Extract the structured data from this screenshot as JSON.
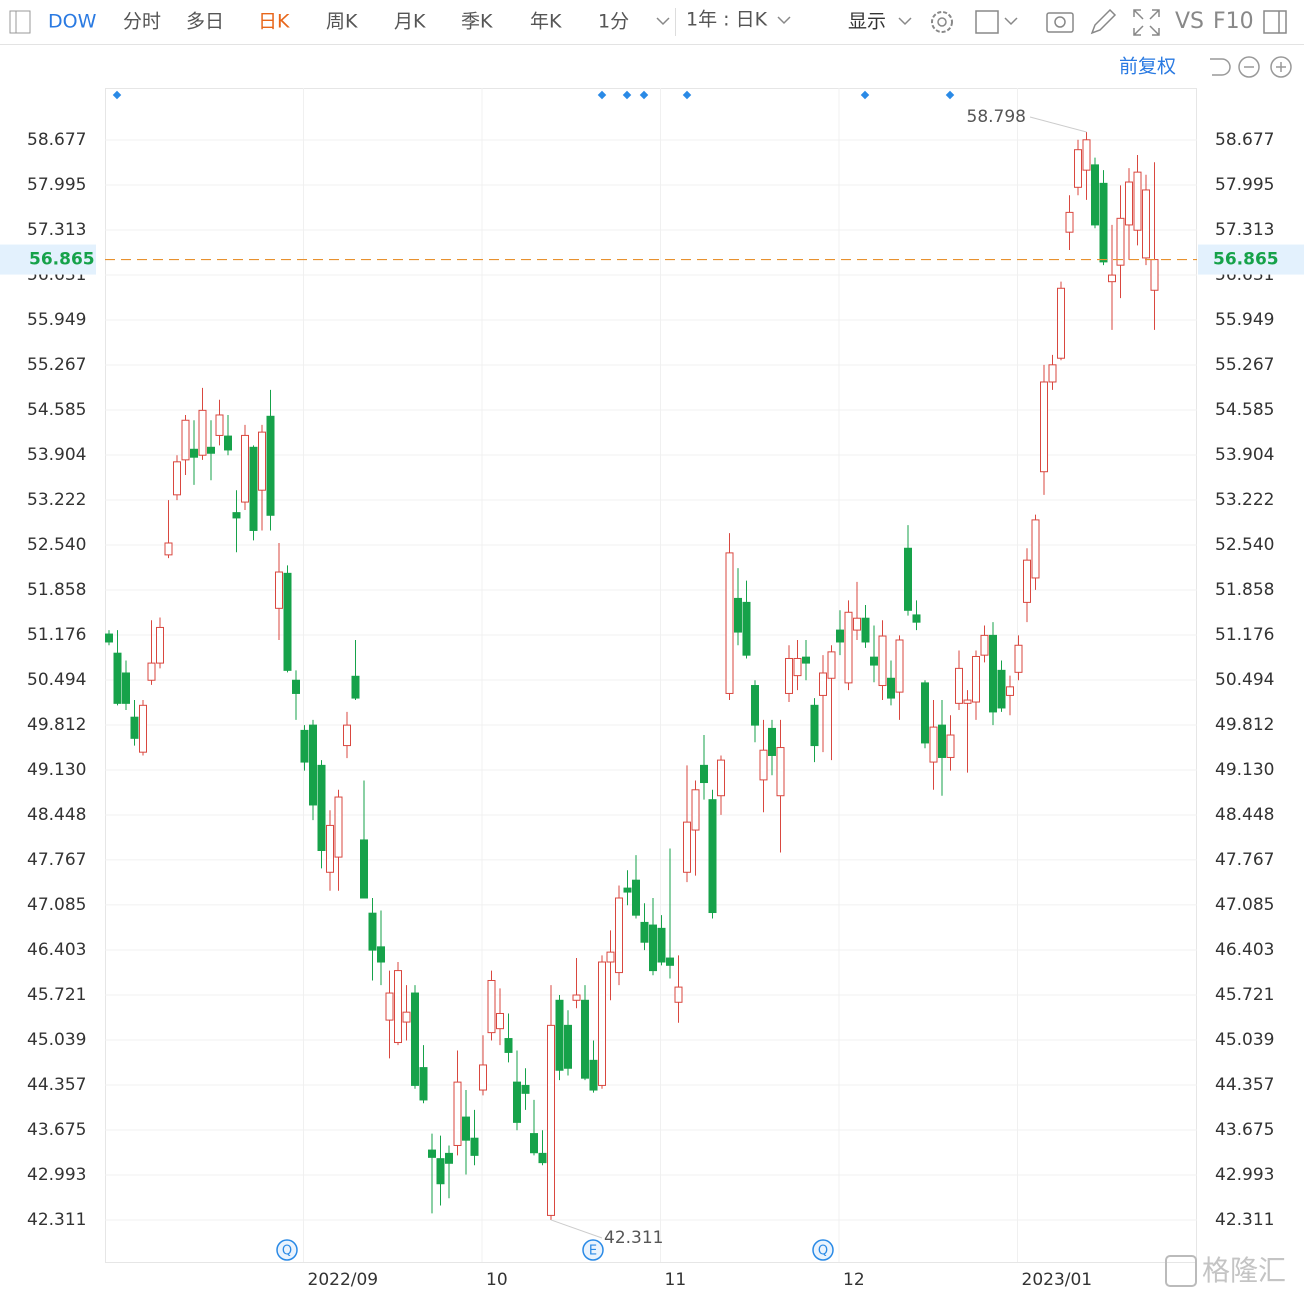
{
  "toolbar": {
    "symbol": "DOW",
    "tabs": [
      "分时",
      "多日",
      "日K",
      "周K",
      "月K",
      "季K",
      "年K",
      "1分"
    ],
    "period": "1年 : 日K",
    "display": "显示",
    "vs": "VS",
    "f10": "F10",
    "adjust": "前复权"
  },
  "watermark": "格隆汇",
  "event_badges": [
    "Q",
    "E",
    "Q"
  ],
  "chart_data": {
    "type": "candlestick",
    "up_color": "#d9473f",
    "down_color": "#16a24a",
    "grid": true,
    "last_price": 56.865,
    "last_price_color": "#e8912e",
    "ylim": [
      41.674,
      59.465
    ],
    "yticks": [
      58.677,
      57.995,
      57.313,
      56.631,
      55.949,
      55.267,
      54.585,
      53.904,
      53.222,
      {
        "value": 52.54,
        "label": "52.540"
      },
      51.858,
      51.176,
      50.494,
      49.812,
      {
        "value": 49.13,
        "label": "49.130"
      },
      48.448,
      47.767,
      47.085,
      46.403,
      45.721,
      45.039,
      44.357,
      43.675,
      42.993,
      42.311
    ],
    "categories": [
      null,
      null,
      null,
      null,
      null,
      null,
      null,
      null,
      null,
      null,
      null,
      null,
      null,
      null,
      null,
      null,
      null,
      null,
      null,
      null,
      null,
      null,
      null,
      "2022/09",
      null,
      null,
      null,
      null,
      null,
      null,
      null,
      null,
      null,
      null,
      null,
      null,
      null,
      null,
      null,
      null,
      null,
      null,
      null,
      null,
      "10",
      null,
      null,
      null,
      null,
      null,
      null,
      null,
      null,
      null,
      null,
      null,
      null,
      null,
      null,
      null,
      null,
      null,
      null,
      null,
      null,
      "11",
      null,
      null,
      null,
      null,
      null,
      null,
      null,
      null,
      null,
      null,
      null,
      null,
      null,
      null,
      null,
      null,
      null,
      null,
      null,
      null,
      "12",
      null,
      null,
      null,
      null,
      null,
      null,
      null,
      null,
      null,
      null,
      null,
      null,
      null,
      null,
      null,
      null,
      null,
      null,
      null,
      null,
      "2023/01",
      null,
      null,
      null,
      null,
      null,
      null,
      null,
      null,
      null,
      null,
      null,
      null,
      null,
      null,
      null,
      null
    ],
    "open": [
      51.19,
      50.9,
      50.6,
      49.93,
      49.4,
      50.49,
      50.75,
      52.39,
      53.3,
      53.83,
      53.99,
      53.9,
      54.02,
      54.2,
      54.19,
      53.03,
      53.19,
      54.02,
      53.37,
      54.49,
      51.58,
      52.11,
      50.49,
      49.73,
      49.81,
      49.2,
      47.58,
      47.81,
      49.5,
      50.55,
      48.07,
      46.96,
      46.45,
      45.34,
      45.0,
      45.31,
      45.75,
      44.62,
      43.37,
      43.24,
      43.32,
      43.44,
      43.87,
      43.55,
      44.28,
      45.15,
      45.21,
      45.06,
      44.4,
      44.35,
      43.62,
      43.32,
      42.38,
      45.64,
      45.26,
      45.64,
      45.64,
      44.73,
      44.35,
      46.22,
      46.06,
      47.34,
      47.46,
      46.82,
      46.78,
      46.73,
      46.28,
      45.61,
      47.58,
      48.22,
      49.2,
      48.68,
      48.74,
      50.29,
      51.73,
      51.67,
      50.41,
      48.98,
      49.76,
      48.74,
      50.29,
      50.56,
      50.84,
      50.11,
      50.26,
      50.52,
      51.25,
      50.45,
      51.25,
      51.43,
      50.84,
      50.41,
      50.52,
      50.31,
      52.49,
      51.48,
      50.45,
      49.25,
      49.81,
      49.32,
      50.14,
      50.14,
      50.16,
      50.87,
      51.17,
      50.64,
      50.26,
      50.61,
      51.67,
      52.04,
      53.65,
      55.01,
      55.37,
      57.28,
      57.96,
      58.22,
      58.3,
      58.02,
      56.53,
      56.78,
      57.39,
      57.31,
      56.89,
      56.4
    ],
    "high": [
      51.25,
      51.25,
      50.79,
      50.19,
      50.19,
      51.4,
      51.44,
      53.22,
      53.9,
      54.51,
      54.43,
      54.92,
      54.43,
      54.74,
      54.51,
      53.37,
      54.36,
      54.05,
      54.36,
      54.89,
      52.57,
      52.23,
      50.64,
      49.81,
      49.89,
      49.28,
      48.52,
      48.83,
      50.01,
      51.1,
      48.97,
      47.19,
      47.0,
      46.09,
      46.22,
      45.87,
      45.87,
      44.96,
      43.62,
      43.59,
      43.44,
      44.88,
      44.28,
      43.98,
      45.11,
      46.09,
      45.82,
      45.44,
      44.88,
      44.61,
      44.13,
      43.67,
      45.87,
      45.72,
      45.49,
      46.28,
      45.87,
      45.03,
      46.32,
      46.7,
      47.38,
      47.61,
      47.84,
      47.11,
      47.19,
      46.93,
      47.94,
      46.32,
      49.2,
      48.97,
      49.66,
      48.83,
      49.35,
      52.72,
      52.19,
      52.0,
      50.49,
      49.89,
      49.89,
      49.89,
      51.02,
      51.1,
      51.1,
      50.22,
      50.87,
      51.02,
      51.55,
      51.7,
      51.98,
      51.63,
      51.32,
      51.4,
      50.79,
      51.17,
      52.84,
      51.7,
      50.49,
      50.19,
      50.19,
      49.96,
      50.94,
      50.34,
      50.94,
      51.32,
      51.37,
      50.79,
      50.56,
      51.17,
      52.49,
      53.0,
      55.27,
      55.42,
      56.53,
      57.84,
      58.68,
      58.798,
      58.41,
      58.22,
      57.39,
      57.99,
      58.25,
      58.45,
      58.15,
      58.34
    ],
    "low": [
      51.02,
      50.11,
      50.04,
      49.5,
      49.35,
      50.42,
      50.67,
      52.34,
      53.22,
      53.6,
      53.45,
      53.83,
      53.52,
      54.05,
      53.9,
      52.43,
      53.07,
      52.61,
      52.76,
      52.76,
      51.1,
      50.61,
      49.89,
      49.12,
      48.37,
      47.64,
      47.3,
      47.3,
      49.31,
      50.19,
      47.19,
      45.94,
      45.87,
      44.76,
      44.96,
      45.03,
      44.3,
      44.08,
      42.41,
      42.53,
      42.64,
      43.29,
      43.0,
      43.14,
      44.2,
      45.03,
      44.96,
      44.7,
      43.67,
      43.98,
      43.29,
      43.14,
      42.311,
      44.43,
      44.5,
      45.52,
      44.43,
      44.24,
      44.3,
      45.64,
      45.87,
      47.08,
      46.88,
      46.4,
      46.02,
      46.17,
      45.97,
      45.3,
      47.43,
      47.53,
      48.68,
      46.88,
      48.45,
      50.19,
      51.02,
      50.82,
      49.55,
      48.49,
      49.05,
      47.88,
      50.16,
      50.34,
      50.49,
      49.25,
      49.4,
      49.28,
      50.87,
      50.34,
      51.1,
      50.98,
      50.46,
      50.19,
      50.11,
      49.89,
      51.47,
      51.25,
      49.46,
      48.83,
      48.74,
      49.12,
      50.04,
      49.09,
      49.89,
      50.76,
      49.81,
      50.01,
      49.96,
      50.49,
      51.37,
      51.86,
      53.3,
      54.89,
      55.34,
      57.01,
      57.84,
      57.77,
      57.34,
      56.78,
      55.8,
      56.28,
      56.86,
      57.08,
      56.78,
      55.8
    ],
    "close": [
      51.07,
      50.14,
      50.14,
      49.61,
      50.11,
      50.75,
      51.29,
      52.57,
      53.8,
      54.43,
      53.87,
      54.58,
      53.93,
      54.51,
      53.98,
      52.95,
      54.2,
      52.76,
      54.25,
      52.99,
      52.13,
      50.64,
      50.29,
      49.25,
      48.6,
      47.91,
      48.29,
      48.72,
      49.81,
      50.22,
      47.19,
      46.4,
      46.22,
      45.75,
      46.09,
      45.46,
      44.35,
      44.13,
      43.26,
      42.86,
      43.17,
      44.4,
      43.52,
      43.29,
      44.66,
      45.94,
      45.44,
      44.85,
      43.79,
      44.23,
      43.33,
      43.18,
      45.26,
      44.58,
      44.61,
      45.72,
      44.46,
      44.28,
      46.22,
      46.37,
      47.19,
      47.28,
      46.93,
      46.52,
      46.09,
      46.22,
      46.17,
      45.84,
      48.34,
      48.83,
      48.94,
      46.97,
      49.28,
      52.42,
      51.22,
      50.87,
      49.81,
      49.43,
      49.35,
      49.47,
      50.82,
      50.82,
      50.75,
      49.5,
      50.6,
      50.92,
      51.07,
      51.52,
      51.43,
      51.07,
      50.72,
      51.16,
      50.22,
      51.1,
      51.55,
      51.37,
      49.54,
      49.78,
      49.32,
      49.66,
      50.67,
      50.19,
      50.85,
      51.17,
      50.01,
      50.07,
      50.39,
      51.02,
      52.31,
      52.92,
      55.01,
      55.27,
      56.43,
      57.58,
      58.53,
      58.68,
      57.39,
      56.83,
      56.63,
      57.49,
      58.04,
      58.19,
      57.92,
      56.865
    ]
  }
}
